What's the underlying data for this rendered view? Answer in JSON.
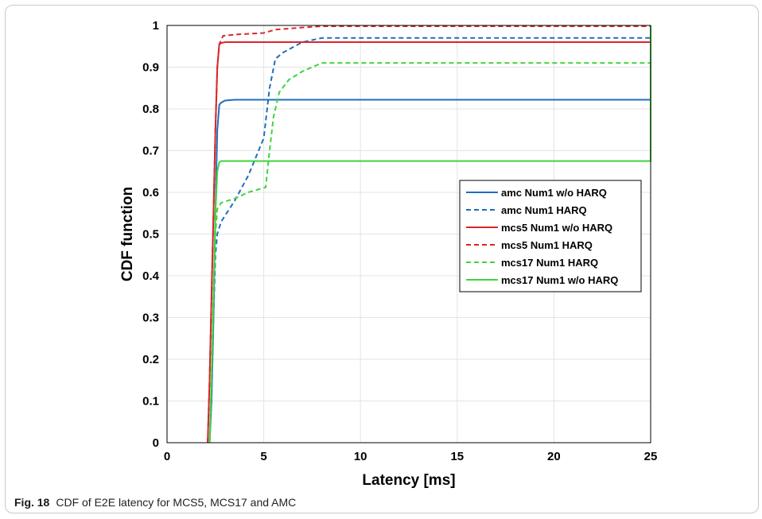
{
  "caption": {
    "label": "Fig. 18",
    "text": "CDF of E2E latency for MCS5, MCS17 and AMC"
  },
  "chart_data": {
    "type": "line",
    "title": "",
    "xlabel": "Latency [ms]",
    "ylabel": "CDF function",
    "xlim": [
      0,
      25
    ],
    "ylim": [
      0,
      1
    ],
    "xticks": [
      0,
      5,
      10,
      15,
      20,
      25
    ],
    "yticks": [
      0,
      0.1,
      0.2,
      0.3,
      0.4,
      0.5,
      0.6,
      0.7,
      0.8,
      0.9,
      1
    ],
    "grid": true,
    "legend_position": "right",
    "series": [
      {
        "name": "amc Num1 w/o HARQ",
        "color": "#1f6fbd",
        "dash": "solid",
        "x": [
          2.2,
          2.3,
          2.4,
          2.5,
          2.6,
          2.7,
          2.8,
          3.0,
          3.5,
          25
        ],
        "y": [
          0,
          0.1,
          0.3,
          0.55,
          0.75,
          0.81,
          0.815,
          0.82,
          0.822,
          0.822
        ]
      },
      {
        "name": "amc Num1 HARQ",
        "color": "#1f6fbd",
        "dash": "dashed",
        "x": [
          2.2,
          2.3,
          2.4,
          2.5,
          2.6,
          2.8,
          3.5,
          4.2,
          5.0,
          5.3,
          5.6,
          6.0,
          7.0,
          8.0,
          25
        ],
        "y": [
          0,
          0.1,
          0.3,
          0.45,
          0.5,
          0.53,
          0.58,
          0.64,
          0.73,
          0.85,
          0.92,
          0.935,
          0.96,
          0.97,
          0.97
        ]
      },
      {
        "name": "mcs5 Num1 w/o HARQ",
        "color": "#d9262c",
        "dash": "solid",
        "x": [
          2.1,
          2.2,
          2.3,
          2.4,
          2.5,
          2.6,
          2.7,
          2.8,
          3.0,
          25
        ],
        "y": [
          0,
          0.15,
          0.35,
          0.55,
          0.75,
          0.9,
          0.955,
          0.958,
          0.96,
          0.96
        ]
      },
      {
        "name": "mcs5 Num1 HARQ",
        "color": "#d9262c",
        "dash": "dashed",
        "x": [
          2.1,
          2.2,
          2.3,
          2.4,
          2.5,
          2.6,
          2.7,
          2.9,
          3.5,
          5.0,
          5.6,
          7.0,
          8.0,
          25
        ],
        "y": [
          0,
          0.15,
          0.35,
          0.55,
          0.75,
          0.9,
          0.955,
          0.975,
          0.978,
          0.982,
          0.99,
          0.995,
          0.998,
          0.998
        ]
      },
      {
        "name": "mcs17 Num1 HARQ",
        "color": "#3fd43f",
        "dash": "dashed",
        "x": [
          2.2,
          2.3,
          2.4,
          2.5,
          2.6,
          2.8,
          3.5,
          4.2,
          5.1,
          5.3,
          5.5,
          5.8,
          6.3,
          7.0,
          8.0,
          25
        ],
        "y": [
          0,
          0.15,
          0.35,
          0.5,
          0.56,
          0.575,
          0.585,
          0.6,
          0.612,
          0.7,
          0.78,
          0.84,
          0.87,
          0.89,
          0.91,
          0.91
        ]
      },
      {
        "name": "mcs17 Num1 w/o HARQ",
        "color": "#3fd43f",
        "dash": "solid",
        "x": [
          2.2,
          2.3,
          2.4,
          2.5,
          2.6,
          2.7,
          2.8,
          24.999,
          25,
          25
        ],
        "y": [
          0,
          0.15,
          0.35,
          0.55,
          0.65,
          0.672,
          0.675,
          0.675,
          0.675,
          1.0
        ]
      }
    ]
  }
}
